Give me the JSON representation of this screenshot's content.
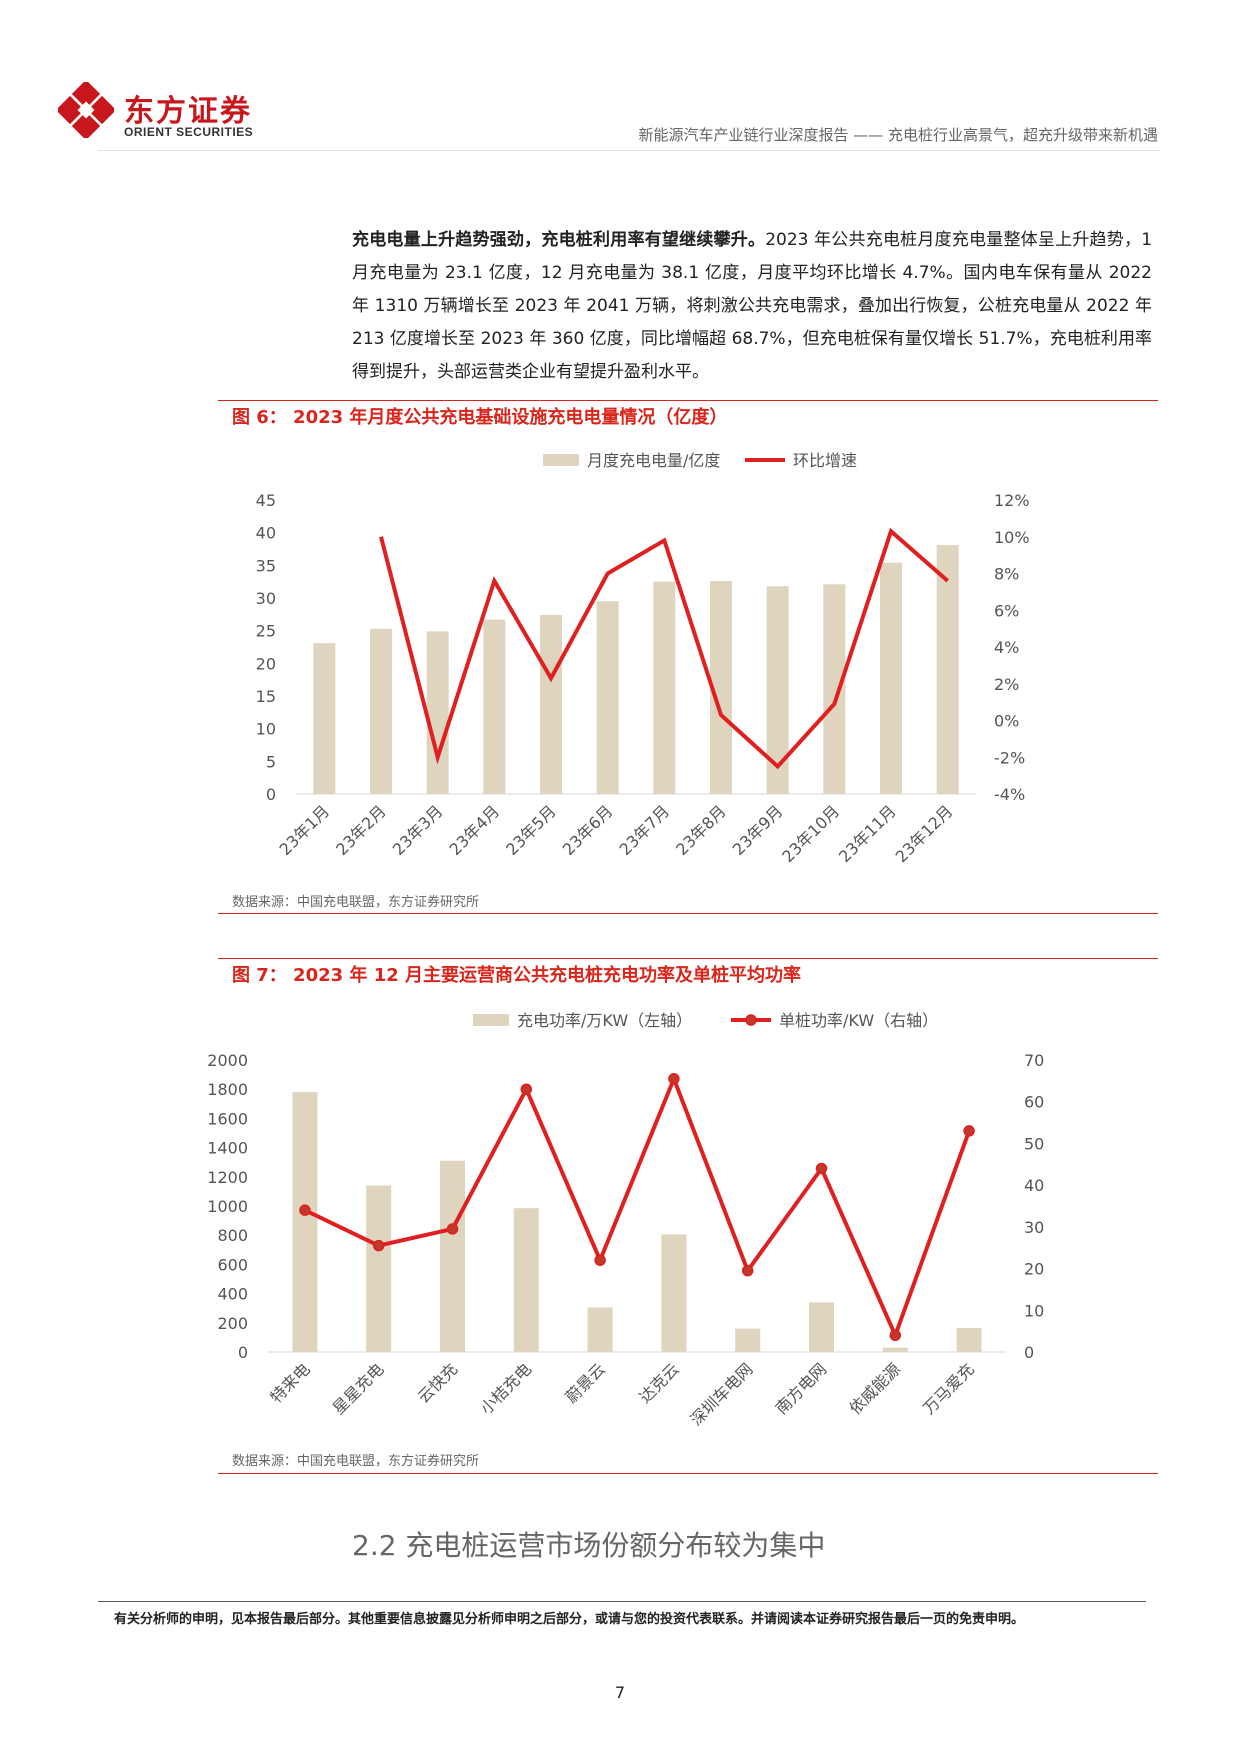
{
  "header": {
    "logo_cn": "东方证券",
    "logo_en": "ORIENT SECURITIES",
    "report_title": "新能源汽车产业链行业深度报告 —— 充电桩行业高景气，超充升级带来新机遇"
  },
  "paragraph": {
    "bold": "充电电量上升趋势强劲，充电桩利用率有望继续攀升。",
    "text": "2023 年公共充电桩月度充电量整体呈上升趋势，1 月充电量为 23.1 亿度，12 月充电量为 38.1 亿度，月度平均环比增长 4.7%。国内电车保有量从 2022 年 1310 万辆增长至 2023 年 2041 万辆，将刺激公共充电需求，叠加出行恢复，公桩充电量从 2022 年 213 亿度增长至 2023 年 360 亿度，同比增幅超 68.7%，但充电桩保有量仅增长 51.7%，充电桩利用率得到提升，头部运营类企业有望提升盈利水平。"
  },
  "figure6": {
    "title": "图 6： 2023 年月度公共充电基础设施充电电量情况（亿度）",
    "source": "数据来源：中国充电联盟，东方证券研究所"
  },
  "figure7": {
    "title": "图 7： 2023 年 12 月主要运营商公共充电桩充电功率及单桩平均功率",
    "source": "数据来源：中国充电联盟，东方证券研究所"
  },
  "chart_data": [
    {
      "type": "bar",
      "title": "2023 年月度公共充电基础设施充电电量情况（亿度）",
      "categories": [
        "23年1月",
        "23年2月",
        "23年3月",
        "23年4月",
        "23年5月",
        "23年6月",
        "23年7月",
        "23年8月",
        "23年9月",
        "23年10月",
        "23年11月",
        "23年12月"
      ],
      "series": [
        {
          "name": "月度充电电量/亿度",
          "type": "bar",
          "axis": "left",
          "color": "#dfd5bf",
          "values": [
            23.1,
            25.3,
            24.9,
            26.7,
            27.4,
            29.5,
            32.5,
            32.6,
            31.8,
            32.1,
            35.4,
            38.1
          ]
        },
        {
          "name": "环比增速",
          "type": "line",
          "axis": "right",
          "color": "#e02020",
          "values": [
            null,
            10.0,
            -2.0,
            7.6,
            2.3,
            8.0,
            9.8,
            0.3,
            -2.5,
            0.9,
            10.3,
            7.6
          ]
        }
      ],
      "left_axis": {
        "min": 0,
        "max": 45,
        "ticks": [
          "0",
          "5",
          "10",
          "15",
          "20",
          "25",
          "30",
          "35",
          "40",
          "45"
        ]
      },
      "right_axis": {
        "min": -4,
        "max": 12,
        "ticks": [
          "-4%",
          "-2%",
          "0%",
          "2%",
          "4%",
          "6%",
          "8%",
          "10%",
          "12%"
        ]
      },
      "legend": "top-center",
      "grid": false
    },
    {
      "type": "bar",
      "title": "2023 年 12 月主要运营商公共充电桩充电功率及单桩平均功率",
      "categories": [
        "特来电",
        "星星充电",
        "云快充",
        "小桔充电",
        "蔚景云",
        "达克云",
        "深圳车电网",
        "南方电网",
        "依威能源",
        "万马爱充"
      ],
      "series": [
        {
          "name": "充电功率/万KW（左轴）",
          "type": "bar",
          "axis": "left",
          "color": "#dfd5bf",
          "values": [
            1780,
            1140,
            1310,
            985,
            305,
            805,
            160,
            340,
            30,
            165
          ]
        },
        {
          "name": "单桩功率/KW（右轴）",
          "type": "line",
          "axis": "right",
          "color": "#e02020",
          "values": [
            34,
            25.5,
            29.5,
            63,
            22,
            65.5,
            19.5,
            44,
            4,
            53
          ]
        }
      ],
      "left_axis": {
        "min": 0,
        "max": 2000,
        "ticks": [
          "0",
          "200",
          "400",
          "600",
          "800",
          "1000",
          "1200",
          "1400",
          "1600",
          "1800",
          "2000"
        ]
      },
      "right_axis": {
        "min": 0,
        "max": 70,
        "ticks": [
          "0",
          "10",
          "20",
          "30",
          "40",
          "50",
          "60",
          "70"
        ]
      },
      "legend": "top-center",
      "grid": false
    }
  ],
  "section": {
    "title": "2.2 充电桩运营市场份额分布较为集中"
  },
  "footer": {
    "disclaimer": "有关分析师的申明，见本报告最后部分。其他重要信息披露见分析师申明之后部分，或请与您的投资代表联系。并请阅读本证券研究报告最后一页的免责申明。",
    "page": "7"
  }
}
